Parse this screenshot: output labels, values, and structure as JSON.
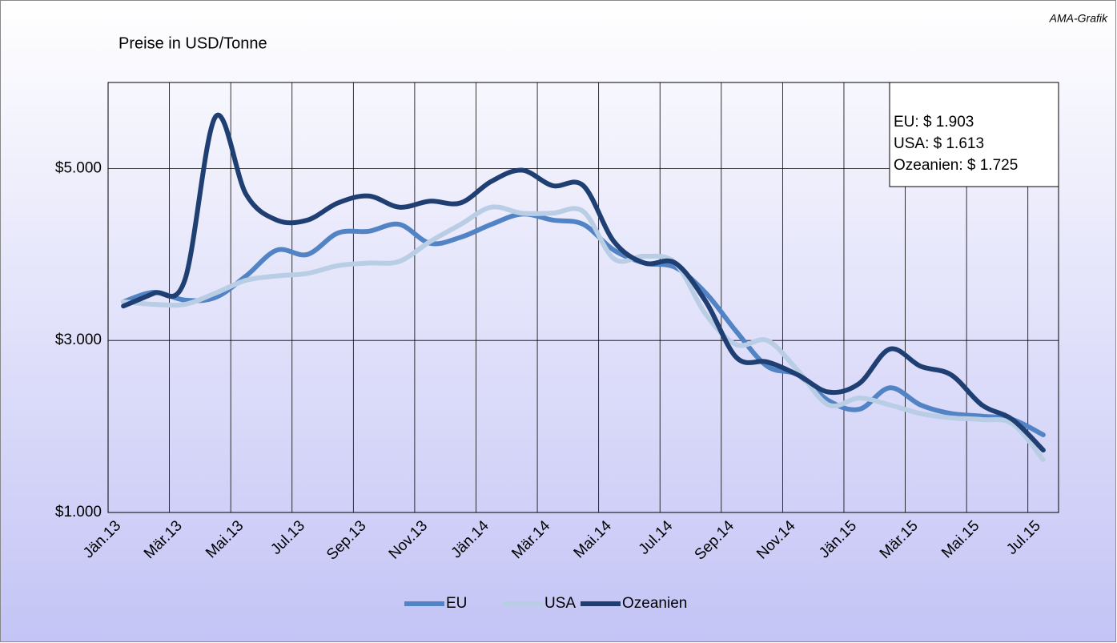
{
  "chart_data": {
    "type": "line",
    "title": "Preise in USD/Tonne",
    "source": "AMA-Grafik",
    "annotations": [
      "EU: $ 1.903",
      "USA: $ 1.613",
      "Ozeanien: $ 1.725"
    ],
    "categories": [
      "Jän.13",
      null,
      "Mär.13",
      null,
      "Mai.13",
      null,
      "Jul.13",
      null,
      "Sep.13",
      null,
      "Nov.13",
      null,
      "Jän.14",
      null,
      "Mär.14",
      null,
      "Mai.14",
      null,
      "Jul.14",
      null,
      "Sep.14",
      null,
      "Nov.14",
      null,
      "Jän.15",
      null,
      "Mär.15",
      null,
      "Mai.15",
      null,
      "Jul.15"
    ],
    "series": [
      {
        "name": "EU",
        "color": "#5283c4",
        "values": [
          3450,
          3560,
          3470,
          3500,
          3750,
          4050,
          4000,
          4250,
          4270,
          4350,
          4130,
          4200,
          4350,
          4470,
          4400,
          4350,
          4050,
          3900,
          3850,
          3550,
          3100,
          2700,
          2600,
          2300,
          2200,
          2450,
          2250,
          2150,
          2120,
          2080,
          1903
        ]
      },
      {
        "name": "USA",
        "color": "#b9cde5",
        "values": [
          3450,
          3420,
          3420,
          3550,
          3700,
          3750,
          3780,
          3870,
          3900,
          3920,
          4150,
          4350,
          4550,
          4480,
          4480,
          4500,
          3950,
          3980,
          3900,
          3300,
          2950,
          3000,
          2650,
          2250,
          2330,
          2250,
          2150,
          2100,
          2080,
          2030,
          1613
        ]
      },
      {
        "name": "Ozeanien",
        "color": "#1f3f73",
        "values": [
          3400,
          3550,
          3700,
          5600,
          4700,
          4400,
          4400,
          4600,
          4680,
          4550,
          4620,
          4600,
          4850,
          4980,
          4800,
          4800,
          4150,
          3900,
          3900,
          3450,
          2800,
          2750,
          2600,
          2400,
          2500,
          2900,
          2700,
          2600,
          2250,
          2080,
          1725
        ]
      }
    ],
    "ylim": [
      1000,
      6000
    ],
    "yticks": [
      {
        "value": 1000,
        "label": "$1.000"
      },
      {
        "value": 3000,
        "label": "$3.000"
      },
      {
        "value": 5000,
        "label": "$5.000"
      }
    ],
    "grid": true,
    "legend": "bottom"
  }
}
